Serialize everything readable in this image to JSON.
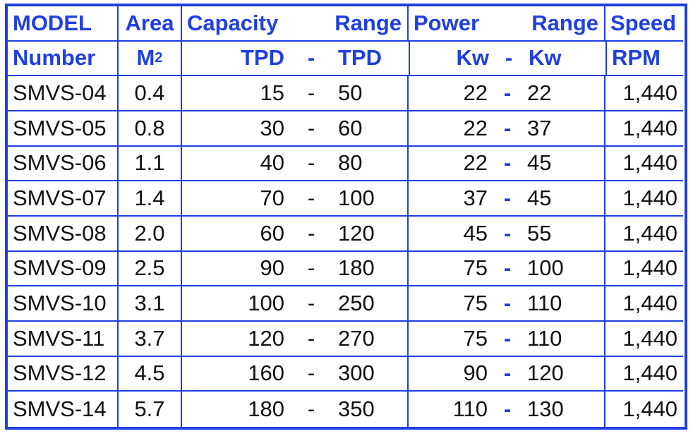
{
  "header": {
    "row1": {
      "model": "MODEL",
      "area": "Area",
      "capacity": "Capacity",
      "capacity_range": "Range",
      "power": "Power",
      "power_range": "Range",
      "speed": "Speed"
    },
    "row2": {
      "number": "Number",
      "area_unit_base": "M",
      "area_unit_sup": "2",
      "cap_lo_unit": "TPD",
      "cap_dash": "-",
      "cap_hi_unit": "TPD",
      "pow_lo_unit": "Kw",
      "pow_dash": "-",
      "pow_hi_unit": "Kw",
      "speed_unit": "RPM"
    }
  },
  "rows": [
    {
      "model": "SMVS-04",
      "area": "0.4",
      "cap_lo": "15",
      "cap_hi": "50",
      "pow_lo": "22",
      "pow_hi": "22",
      "speed": "1,440"
    },
    {
      "model": "SMVS-05",
      "area": "0.8",
      "cap_lo": "30",
      "cap_hi": "60",
      "pow_lo": "22",
      "pow_hi": "37",
      "speed": "1,440"
    },
    {
      "model": "SMVS-06",
      "area": "1.1",
      "cap_lo": "40",
      "cap_hi": "80",
      "pow_lo": "22",
      "pow_hi": "45",
      "speed": "1,440"
    },
    {
      "model": "SMVS-07",
      "area": "1.4",
      "cap_lo": "70",
      "cap_hi": "100",
      "pow_lo": "37",
      "pow_hi": "45",
      "speed": "1,440"
    },
    {
      "model": "SMVS-08",
      "area": "2.0",
      "cap_lo": "60",
      "cap_hi": "120",
      "pow_lo": "45",
      "pow_hi": "55",
      "speed": "1,440"
    },
    {
      "model": "SMVS-09",
      "area": "2.5",
      "cap_lo": "90",
      "cap_hi": "180",
      "pow_lo": "75",
      "pow_hi": "100",
      "speed": "1,440"
    },
    {
      "model": "SMVS-10",
      "area": "3.1",
      "cap_lo": "100",
      "cap_hi": "250",
      "pow_lo": "75",
      "pow_hi": "110",
      "speed": "1,440"
    },
    {
      "model": "SMVS-11",
      "area": "3.7",
      "cap_lo": "120",
      "cap_hi": "270",
      "pow_lo": "75",
      "pow_hi": "110",
      "speed": "1,440"
    },
    {
      "model": "SMVS-12",
      "area": "4.5",
      "cap_lo": "160",
      "cap_hi": "300",
      "pow_lo": "90",
      "pow_hi": "120",
      "speed": "1,440"
    },
    {
      "model": "SMVS-14",
      "area": "5.7",
      "cap_lo": "180",
      "cap_hi": "350",
      "pow_lo": "110",
      "pow_hi": "130",
      "speed": "1,440"
    }
  ],
  "range_dash": "-",
  "colors": {
    "accent": "#1f3fe0",
    "text": "#111111",
    "background": "#ffffff"
  }
}
